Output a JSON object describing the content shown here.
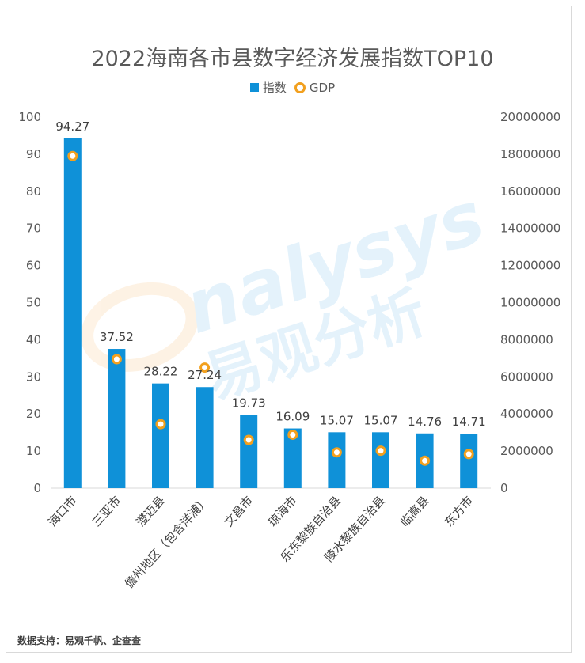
{
  "chart_data": {
    "type": "bar",
    "title": "2022海南各市县数字经济发展指数TOP10",
    "categories": [
      "海口市",
      "三亚市",
      "澄迈县",
      "儋州地区（包含洋浦）",
      "文昌市",
      "琼海市",
      "乐东黎族自治县",
      "陵水黎族自治县",
      "临高县",
      "东方市"
    ],
    "series": [
      {
        "name": "指数",
        "type": "bar",
        "axis": "left",
        "color": "#0f91d8",
        "values": [
          94.27,
          37.52,
          28.22,
          27.24,
          19.73,
          16.09,
          15.07,
          15.07,
          14.76,
          14.71
        ]
      },
      {
        "name": "GDP",
        "type": "scatter",
        "axis": "right",
        "color": "#f2a01e",
        "values": [
          17900000,
          6950000,
          3450000,
          6500000,
          2600000,
          2880000,
          1930000,
          2020000,
          1480000,
          1840000
        ]
      }
    ],
    "yleft": {
      "min": 0,
      "max": 100,
      "ticks": [
        0,
        10,
        20,
        30,
        40,
        50,
        60,
        70,
        80,
        90,
        100
      ]
    },
    "yright": {
      "min": 0,
      "max": 20000000,
      "ticks": [
        0,
        2000000,
        4000000,
        6000000,
        8000000,
        10000000,
        12000000,
        14000000,
        16000000,
        18000000,
        20000000
      ]
    },
    "legend_position": "top",
    "grid": false
  },
  "watermark": {
    "latin": "nalysys",
    "chinese": "易观分析"
  },
  "source_text": "数据支持：易观千帆、企查查"
}
